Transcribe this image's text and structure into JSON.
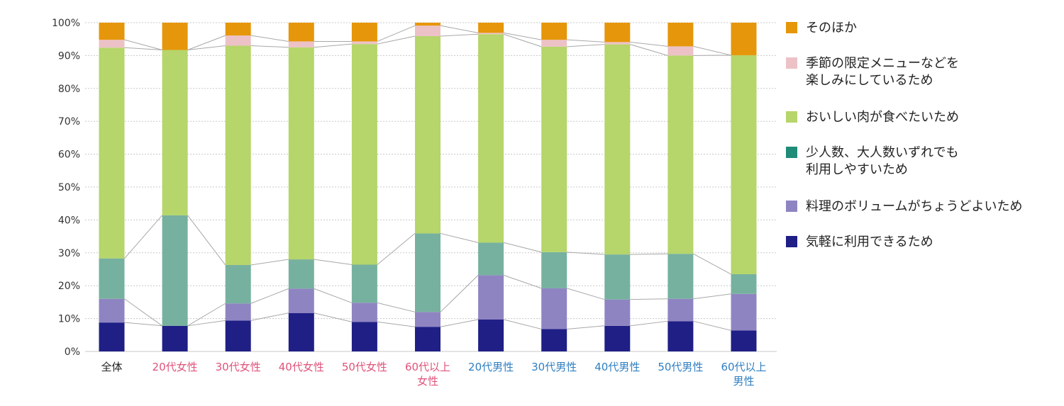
{
  "chart_data": {
    "type": "bar",
    "stacked": true,
    "percent": true,
    "ylim": [
      0,
      100
    ],
    "y_ticks": [
      "0%",
      "10%",
      "20%",
      "30%",
      "40%",
      "50%",
      "60%",
      "70%",
      "80%",
      "90%",
      "100%"
    ],
    "categories": [
      {
        "label": "全体",
        "color": "#222222"
      },
      {
        "label": "20代女性",
        "color": "#e0527a"
      },
      {
        "label": "30代女性",
        "color": "#e0527a"
      },
      {
        "label": "40代女性",
        "color": "#e0527a"
      },
      {
        "label": "50代女性",
        "color": "#e0527a"
      },
      {
        "label": "60代以上\n女性",
        "color": "#e0527a"
      },
      {
        "label": "20代男性",
        "color": "#2f7fc1"
      },
      {
        "label": "30代男性",
        "color": "#2f7fc1"
      },
      {
        "label": "40代男性",
        "color": "#2f7fc1"
      },
      {
        "label": "50代男性",
        "color": "#2f7fc1"
      },
      {
        "label": "60代以上\n男性",
        "color": "#2f7fc1"
      }
    ],
    "series": [
      {
        "name": "気軽に利用できるため",
        "color": "#1f1f86",
        "values": [
          8.8,
          7.8,
          9.4,
          11.7,
          9.0,
          7.5,
          9.7,
          6.8,
          7.8,
          9.2,
          6.4
        ]
      },
      {
        "name": "料理のボリュームがちょうどよいため",
        "color": "#8f84c2",
        "values": [
          7.2,
          0.0,
          5.2,
          7.4,
          5.8,
          4.5,
          13.5,
          12.4,
          8.0,
          6.8,
          11.1
        ]
      },
      {
        "name": "少人数、大人数いずれでも\n利用しやすいため",
        "color": "#76b19f",
        "values": [
          12.3,
          33.6,
          11.7,
          8.9,
          11.6,
          23.9,
          9.9,
          11.0,
          13.7,
          13.7,
          6.0
        ]
      },
      {
        "name": "おいしい肉が食べたいため",
        "color": "#b6d56a",
        "values": [
          64.1,
          50.3,
          66.7,
          64.5,
          67.1,
          60.0,
          63.4,
          62.5,
          63.9,
          60.3,
          66.6
        ]
      },
      {
        "name": "季節の限定メニューなどを\n楽しみにしているため",
        "color": "#ecc2c6",
        "values": [
          2.4,
          0.0,
          3.1,
          1.8,
          0.8,
          3.2,
          0.4,
          2.1,
          0.7,
          2.8,
          0.0
        ]
      },
      {
        "name": "そのほか",
        "color": "#e6960a",
        "values": [
          5.2,
          8.3,
          3.9,
          5.7,
          5.7,
          0.9,
          3.1,
          5.2,
          5.9,
          7.2,
          9.9
        ]
      }
    ]
  },
  "legend": {
    "items": [
      {
        "label": "そのほか",
        "color": "#e6960a"
      },
      {
        "label": "季節の限定メニューなどを\n楽しみにしているため",
        "color": "#ecc2c6"
      },
      {
        "label": "おいしい肉が食べたいため",
        "color": "#b6d56a"
      },
      {
        "label": "少人数、大人数いずれでも\n利用しやすいため",
        "color": "#1f8c78"
      },
      {
        "label": "料理のボリュームがちょうどよいため",
        "color": "#8f84c2"
      },
      {
        "label": "気軽に利用できるため",
        "color": "#1f1f86"
      }
    ]
  }
}
